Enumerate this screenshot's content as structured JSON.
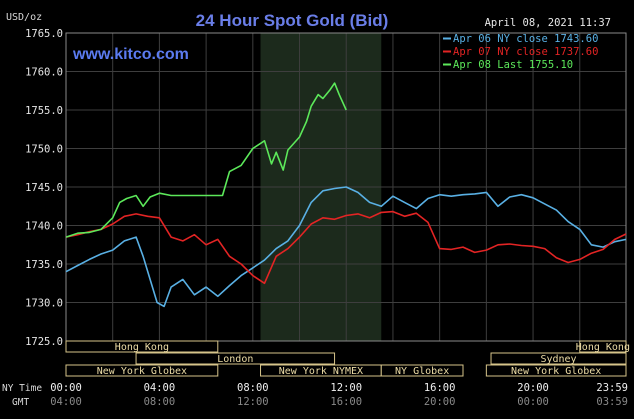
{
  "chart_data": {
    "type": "line",
    "title": "24 Hour Spot Gold (Bid)",
    "watermark": "www.kitco.com",
    "ylabel": "USD/oz",
    "date_time": "April 08, 2021 11:37",
    "ylim": [
      1725.0,
      1765.0
    ],
    "y_ticks": [
      "1765.0",
      "1760.0",
      "1755.0",
      "1750.0",
      "1745.0",
      "1740.0",
      "1735.0",
      "1730.0",
      "1725.0"
    ],
    "x_label_ny": "NY Time",
    "x_label_gmt": "GMT",
    "x_ticks_ny": [
      "00:00",
      "04:00",
      "08:00",
      "12:00",
      "16:00",
      "20:00",
      "23:59"
    ],
    "x_ticks_gmt": [
      "04:00",
      "08:00",
      "12:00",
      "16:00",
      "20:00",
      "00:00",
      "03:59"
    ],
    "sessions": [
      {
        "name": "Hong Kong",
        "start": 0.0,
        "end": 6.5,
        "row": 0
      },
      {
        "name": "Hong Kong",
        "start": 22.0,
        "end": 24.0,
        "row": 0
      },
      {
        "name": "London",
        "start": 3.0,
        "end": 11.5,
        "row": 1
      },
      {
        "name": "Sydney",
        "start": 18.2,
        "end": 24.0,
        "row": 1
      },
      {
        "name": "New York Globex",
        "start": 0.0,
        "end": 6.5,
        "row": 2
      },
      {
        "name": "New York NYMEX",
        "start": 8.33,
        "end": 13.5,
        "row": 2
      },
      {
        "name": "NY Globex",
        "start": 13.5,
        "end": 17.0,
        "row": 2
      },
      {
        "name": "New York Globex",
        "start": 18.0,
        "end": 24.0,
        "row": 2
      }
    ],
    "highlight_range": [
      8.33,
      13.5
    ],
    "series": [
      {
        "name": "Apr 06 NY close 1743.60",
        "color": "#59b0e4",
        "x": [
          0,
          0.5,
          1.0,
          1.5,
          2.0,
          2.5,
          3.0,
          3.3,
          3.6,
          3.9,
          4.2,
          4.5,
          5.0,
          5.5,
          6.0,
          6.5,
          7.0,
          7.5,
          8.0,
          8.5,
          9.0,
          9.5,
          10.0,
          10.5,
          11.0,
          11.5,
          12.0,
          12.5,
          13.0,
          13.5,
          14.0,
          14.5,
          15.0,
          15.5,
          16.0,
          16.5,
          17.0,
          17.5,
          18.0,
          18.5,
          19.0,
          19.5,
          20.0,
          20.5,
          21.0,
          21.5,
          22.0,
          22.5,
          23.0,
          23.5,
          23.98
        ],
        "y": [
          1734.0,
          1734.8,
          1735.6,
          1736.3,
          1736.8,
          1738.0,
          1738.5,
          1736.0,
          1733.0,
          1730.0,
          1729.5,
          1732.0,
          1733.0,
          1731.0,
          1732.0,
          1730.8,
          1732.2,
          1733.5,
          1734.5,
          1735.5,
          1737.0,
          1738.0,
          1740.0,
          1743.0,
          1744.5,
          1744.8,
          1745.0,
          1744.3,
          1743.0,
          1742.5,
          1743.8,
          1743.0,
          1742.2,
          1743.5,
          1744.0,
          1743.8,
          1744.0,
          1744.1,
          1744.3,
          1742.5,
          1743.7,
          1744.0,
          1743.6,
          1742.8,
          1742.0,
          1740.5,
          1739.5,
          1737.5,
          1737.2,
          1737.9,
          1738.2
        ]
      },
      {
        "name": "Apr 07 NY close 1737.60",
        "color": "#e32424",
        "x": [
          0,
          0.5,
          1.0,
          1.5,
          2.0,
          2.5,
          3.0,
          3.5,
          4.0,
          4.5,
          5.0,
          5.5,
          6.0,
          6.5,
          7.0,
          7.5,
          8.0,
          8.5,
          9.0,
          9.5,
          10.0,
          10.5,
          11.0,
          11.5,
          12.0,
          12.5,
          13.0,
          13.5,
          14.0,
          14.5,
          15.0,
          15.5,
          16.0,
          16.5,
          17.0,
          17.5,
          18.0,
          18.5,
          19.0,
          19.5,
          20.0,
          20.5,
          21.0,
          21.5,
          22.0,
          22.5,
          23.0,
          23.5,
          23.98
        ],
        "y": [
          1738.5,
          1738.8,
          1739.2,
          1739.5,
          1740.2,
          1741.2,
          1741.5,
          1741.2,
          1741.0,
          1738.5,
          1738.0,
          1738.8,
          1737.5,
          1738.2,
          1736.0,
          1735.0,
          1733.5,
          1732.5,
          1736.0,
          1737.0,
          1738.5,
          1740.2,
          1741.0,
          1740.8,
          1741.3,
          1741.5,
          1741.0,
          1741.7,
          1741.8,
          1741.2,
          1741.6,
          1740.4,
          1737.0,
          1736.9,
          1737.2,
          1736.5,
          1736.8,
          1737.5,
          1737.6,
          1737.4,
          1737.3,
          1737.0,
          1735.8,
          1735.2,
          1735.6,
          1736.4,
          1736.9,
          1738.2,
          1738.9
        ]
      },
      {
        "name": "Apr 08 Last 1755.10",
        "color": "#5ce85a",
        "x": [
          0,
          0.5,
          1.0,
          1.5,
          2.0,
          2.3,
          2.6,
          3.0,
          3.3,
          3.6,
          4.0,
          4.5,
          5.0,
          5.5,
          6.0,
          6.5,
          6.7,
          7.0,
          7.5,
          8.0,
          8.5,
          8.8,
          9.0,
          9.3,
          9.5,
          10.0,
          10.3,
          10.5,
          10.8,
          11.0,
          11.3,
          11.5,
          11.7,
          12.0
        ],
        "y": [
          1738.5,
          1739.0,
          1739.1,
          1739.5,
          1741.0,
          1743.0,
          1743.5,
          1743.9,
          1742.5,
          1743.7,
          1744.2,
          1743.9,
          1743.9,
          1743.9,
          1743.9,
          1743.9,
          1743.9,
          1747.0,
          1747.8,
          1750.0,
          1751.0,
          1748.0,
          1749.5,
          1747.2,
          1749.8,
          1751.5,
          1753.5,
          1755.5,
          1757.0,
          1756.5,
          1757.6,
          1758.5,
          1757.0,
          1755.0
        ]
      }
    ]
  }
}
